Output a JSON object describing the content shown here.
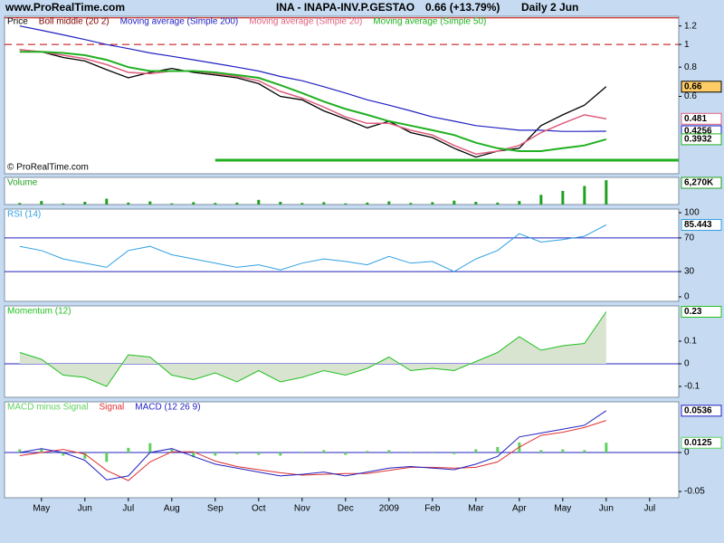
{
  "header": {
    "site": "www.ProRealTime.com",
    "title": "INA - INAPA-INV.P.GESTAO",
    "change": "0.66 (+13.79%)",
    "period": "Daily  2 Jun"
  },
  "chart_data": [
    {
      "type": "line",
      "log_scale": true,
      "copyright": "© ProRealTime.com",
      "x": [
        -0.5,
        0,
        0.5,
        1,
        1.5,
        2,
        2.5,
        3,
        3.5,
        4,
        4.5,
        5,
        5.5,
        6,
        6.5,
        7,
        7.5,
        8,
        8.5,
        9,
        9.5,
        10,
        10.5,
        11,
        11.5,
        12,
        12.5,
        13
      ],
      "xlim": [
        -0.85,
        14.67
      ],
      "ylim": [
        0.28,
        1.32
      ],
      "yticks": [
        1.2,
        1,
        0.8,
        0.6
      ],
      "series": [
        {
          "name": "Price",
          "color": "#000000",
          "width": 1.3,
          "show_last": true,
          "box": "#ffcc66",
          "values": [
            0.95,
            0.93,
            0.88,
            0.85,
            0.78,
            0.72,
            0.76,
            0.79,
            0.76,
            0.74,
            0.72,
            0.68,
            0.6,
            0.58,
            0.52,
            0.48,
            0.44,
            0.47,
            0.42,
            0.4,
            0.36,
            0.33,
            0.35,
            0.36,
            0.45,
            0.5,
            0.55,
            0.66
          ]
        },
        {
          "name": "Boll middle (20 2)",
          "color": "#800000",
          "width": 1,
          "values": [
            0.95,
            0.93,
            0.9,
            0.87,
            0.82,
            0.76,
            0.75,
            0.77,
            0.77,
            0.75,
            0.73,
            0.7,
            0.63,
            0.59,
            0.54,
            0.49,
            0.46,
            0.46,
            0.43,
            0.41,
            0.37,
            0.34,
            0.35,
            0.37,
            0.42,
            0.46,
            0.5,
            0.481
          ]
        },
        {
          "name": "Moving average (Simple 200)",
          "color": "#2020c0",
          "width": 1.2,
          "show_last": true,
          "values": [
            1.2,
            1.15,
            1.1,
            1.05,
            1,
            0.96,
            0.92,
            0.89,
            0.86,
            0.83,
            0.8,
            0.77,
            0.73,
            0.7,
            0.66,
            0.62,
            0.58,
            0.55,
            0.52,
            0.49,
            0.47,
            0.45,
            0.44,
            0.43,
            0.43,
            0.425,
            0.425,
            0.4256
          ]
        },
        {
          "name": "Moving average (Simple 20)",
          "color": "#e06080",
          "width": 1.5,
          "show_last": true,
          "values": [
            0.95,
            0.93,
            0.9,
            0.87,
            0.82,
            0.76,
            0.75,
            0.77,
            0.77,
            0.75,
            0.73,
            0.7,
            0.63,
            0.59,
            0.54,
            0.49,
            0.46,
            0.46,
            0.43,
            0.41,
            0.37,
            0.34,
            0.35,
            0.37,
            0.42,
            0.46,
            0.5,
            0.481
          ]
        },
        {
          "name": "Moving average (Simple 50)",
          "color": "#20b020",
          "width": 2,
          "show_last": true,
          "values": [
            0.93,
            0.93,
            0.92,
            0.9,
            0.86,
            0.8,
            0.77,
            0.77,
            0.77,
            0.76,
            0.74,
            0.72,
            0.67,
            0.62,
            0.57,
            0.53,
            0.5,
            0.47,
            0.45,
            0.43,
            0.41,
            0.38,
            0.36,
            0.35,
            0.35,
            0.36,
            0.37,
            0.3932
          ]
        }
      ],
      "hlines": [
        {
          "value": 1.3,
          "color": "#c00000"
        },
        {
          "value": 1.0,
          "color": "#c00000",
          "dash": true
        },
        {
          "value": 0.32,
          "color": "#20b020",
          "width": 3,
          "from": 4.0
        }
      ]
    },
    {
      "type": "bar",
      "x": [
        -0.5,
        0,
        0.5,
        1,
        1.5,
        2,
        2.5,
        3,
        3.5,
        4,
        4.5,
        5,
        5.5,
        6,
        6.5,
        7,
        7.5,
        8,
        8.5,
        9,
        9.5,
        10,
        10.5,
        11,
        11.5,
        12,
        12.5,
        13
      ],
      "xlim": [
        -0.85,
        14.67
      ],
      "ylim": [
        0,
        7000
      ],
      "series": [
        {
          "name": "Volume",
          "color": "#20a020",
          "show_last": true,
          "last_value_label": "6,270K",
          "values": [
            400,
            900,
            300,
            700,
            1500,
            500,
            800,
            300,
            600,
            400,
            500,
            1200,
            700,
            400,
            600,
            300,
            500,
            800,
            400,
            600,
            1000,
            700,
            500,
            900,
            2500,
            3500,
            4800,
            6270
          ]
        }
      ]
    },
    {
      "type": "line",
      "x": [
        -0.5,
        0,
        0.5,
        1,
        1.5,
        2,
        2.5,
        3,
        3.5,
        4,
        4.5,
        5,
        5.5,
        6,
        6.5,
        7,
        7.5,
        8,
        8.5,
        9,
        9.5,
        10,
        10.5,
        11,
        11.5,
        12,
        12.5,
        13
      ],
      "xlim": [
        -0.85,
        14.67
      ],
      "ylim": [
        -5.4,
        104.3
      ],
      "yticks": [
        100,
        70,
        30,
        0
      ],
      "series": [
        {
          "name": "RSI (14)",
          "color": "#30a0e0",
          "width": 1,
          "show_last": true,
          "values": [
            60,
            55,
            45,
            40,
            35,
            55,
            60,
            50,
            45,
            40,
            35,
            38,
            32,
            40,
            45,
            42,
            38,
            48,
            40,
            42,
            30,
            45,
            55,
            75,
            65,
            68,
            72,
            85.443
          ]
        }
      ],
      "hlines": [
        {
          "value": 70,
          "color": "#2020c0"
        },
        {
          "value": 30,
          "color": "#2020c0"
        }
      ]
    },
    {
      "type": "area",
      "x": [
        -0.5,
        0,
        0.5,
        1,
        1.5,
        2,
        2.5,
        3,
        3.5,
        4,
        4.5,
        5,
        5.5,
        6,
        6.5,
        7,
        7.5,
        8,
        8.5,
        9,
        9.5,
        10,
        10.5,
        11,
        11.5,
        12,
        12.5,
        13
      ],
      "xlim": [
        -0.85,
        14.67
      ],
      "ylim": [
        -0.148,
        0.256
      ],
      "yticks": [
        0.1,
        0,
        -0.1
      ],
      "series": [
        {
          "name": "Momentum (12)",
          "color": "#20c020",
          "fill": "#d8e4d0",
          "width": 1,
          "show_last": true,
          "values": [
            0.05,
            0.02,
            -0.05,
            -0.06,
            -0.1,
            0.04,
            0.03,
            -0.05,
            -0.07,
            -0.04,
            -0.08,
            -0.03,
            -0.08,
            -0.06,
            -0.03,
            -0.05,
            -0.02,
            0.03,
            -0.03,
            -0.02,
            -0.03,
            0.01,
            0.05,
            0.12,
            0.06,
            0.08,
            0.09,
            0.23
          ]
        }
      ],
      "hlines": [
        {
          "value": 0,
          "color": "#2020c0"
        }
      ]
    },
    {
      "type": "line",
      "x": [
        -0.5,
        0,
        0.5,
        1,
        1.5,
        2,
        2.5,
        3,
        3.5,
        4,
        4.5,
        5,
        5.5,
        6,
        6.5,
        7,
        7.5,
        8,
        8.5,
        9,
        9.5,
        10,
        10.5,
        11,
        11.5,
        12,
        12.5,
        13
      ],
      "xlim": [
        -0.85,
        14.67
      ],
      "ylim": [
        -0.058,
        0.065
      ],
      "yticks": [
        0,
        -0.05
      ],
      "xticks": [
        {
          "value": 0,
          "label": "May"
        },
        {
          "value": 1,
          "label": "Jun"
        },
        {
          "value": 2,
          "label": "Jul"
        },
        {
          "value": 3,
          "label": "Aug"
        },
        {
          "value": 4,
          "label": "Sep"
        },
        {
          "value": 5,
          "label": "Oct"
        },
        {
          "value": 6,
          "label": "Nov"
        },
        {
          "value": 7,
          "label": "Dec"
        },
        {
          "value": 8,
          "label": "2009"
        },
        {
          "value": 9,
          "label": "Feb"
        },
        {
          "value": 10,
          "label": "Mar"
        },
        {
          "value": 11,
          "label": "Apr"
        },
        {
          "value": 12,
          "label": "May"
        },
        {
          "value": 13,
          "label": "Jun"
        },
        {
          "value": 14,
          "label": "Jul"
        }
      ],
      "series": [
        {
          "name": "MACD minus Signal",
          "style": "histogram",
          "color": "#60d060",
          "show_last": true,
          "values": [
            0.004,
            0.005,
            -0.004,
            -0.008,
            -0.012,
            0.006,
            0.012,
            0.004,
            -0.006,
            -0.004,
            -0.002,
            -0.003,
            -0.004,
            0.001,
            0.003,
            -0.003,
            0.002,
            0.003,
            0.001,
            -0.001,
            -0.002,
            0.004,
            0.007,
            0.013,
            0.003,
            0.004,
            0.003,
            0.0125
          ]
        },
        {
          "name": "Signal",
          "color": "#e03030",
          "width": 1,
          "values": [
            -0.004,
            0,
            0.004,
            -0.002,
            -0.023,
            -0.036,
            -0.012,
            0.001,
            0.001,
            -0.011,
            -0.018,
            -0.022,
            -0.026,
            -0.029,
            -0.028,
            -0.027,
            -0.027,
            -0.023,
            -0.019,
            -0.019,
            -0.02,
            -0.019,
            -0.012,
            0.007,
            0.022,
            0.026,
            0.032,
            0.0411
          ]
        },
        {
          "name": "MACD (12 26 9)",
          "color": "#2020c0",
          "width": 1,
          "show_last": true,
          "values": [
            0,
            0.005,
            0,
            -0.01,
            -0.035,
            -0.03,
            0,
            0.005,
            -0.005,
            -0.015,
            -0.02,
            -0.025,
            -0.03,
            -0.028,
            -0.025,
            -0.03,
            -0.025,
            -0.02,
            -0.018,
            -0.02,
            -0.022,
            -0.015,
            -0.005,
            0.02,
            0.025,
            0.03,
            0.035,
            0.0536
          ]
        }
      ],
      "hlines": [
        {
          "value": 0,
          "color": "#2020c0"
        }
      ]
    }
  ]
}
